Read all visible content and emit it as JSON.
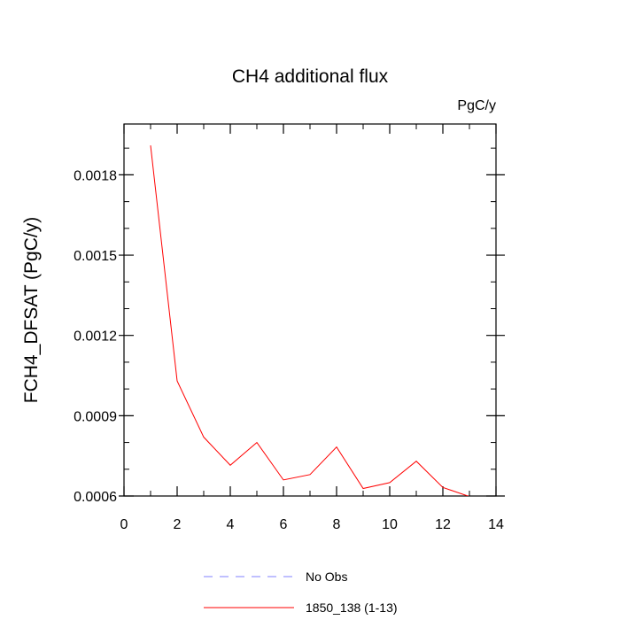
{
  "chart_data": {
    "type": "line",
    "title": "CH4 additional flux",
    "units_label": "PgC/y",
    "ylabel": "FCH4_DFSAT  (PgC/y)",
    "xlabel": "",
    "xlim": [
      0,
      14
    ],
    "ylim": [
      0.0006,
      0.00199
    ],
    "x_ticks": [
      0,
      2,
      4,
      6,
      8,
      10,
      12,
      14
    ],
    "x_tick_labels": [
      "0",
      "2",
      "4",
      "6",
      "8",
      "10",
      "12",
      "14"
    ],
    "y_ticks": [
      0.0006,
      0.0009,
      0.0012,
      0.0015,
      0.0018
    ],
    "y_tick_labels": [
      "0.0006",
      "0.0009",
      "0.0012",
      "0.0015",
      "0.0018"
    ],
    "grid": false,
    "legend_position": "bottom-center",
    "series": [
      {
        "name": "No Obs",
        "color": "#8080ff",
        "dashed": true,
        "x": [],
        "y": []
      },
      {
        "name": "1850_138 (1-13)",
        "color": "#ff0000",
        "dashed": false,
        "x": [
          1,
          2,
          3,
          4,
          5,
          6,
          7,
          8,
          9,
          10,
          11,
          12,
          13
        ],
        "y": [
          0.00191,
          0.00103,
          0.00082,
          0.000715,
          0.0008,
          0.00066,
          0.00068,
          0.000783,
          0.000628,
          0.00065,
          0.00073,
          0.000632,
          0.000598
        ]
      }
    ]
  }
}
